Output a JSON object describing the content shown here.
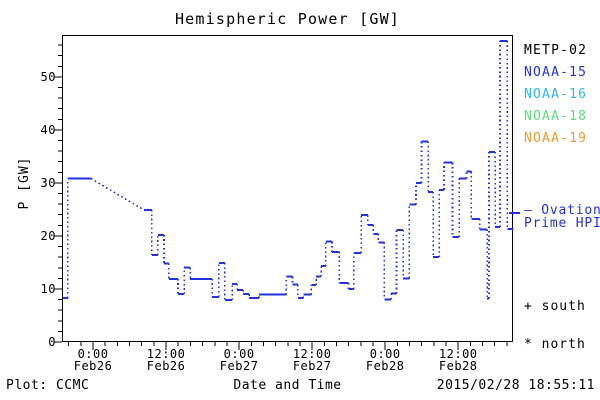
{
  "title": "Hemispheric Power [GW]",
  "colors": {
    "background": "#ffffff",
    "axis": "#000000",
    "line": "#2233dd"
  },
  "y_axis": {
    "label": "P [GW]",
    "ticks": [
      0,
      10,
      20,
      30,
      40,
      50
    ],
    "minor_step": 2,
    "max_value": 57.9
  },
  "x_axis": {
    "label": "Date and Time",
    "range_hours": [
      -5.1,
      69.0
    ],
    "minor_step_hours": 2,
    "major_ticks": [
      {
        "hours": 0,
        "time": "0:00",
        "date": "Feb26"
      },
      {
        "hours": 12,
        "time": "12:00",
        "date": "Feb26"
      },
      {
        "hours": 24,
        "time": "0:00",
        "date": "Feb27"
      },
      {
        "hours": 36,
        "time": "12:00",
        "date": "Feb27"
      },
      {
        "hours": 48,
        "time": "0:00",
        "date": "Feb28"
      },
      {
        "hours": 60,
        "time": "12:00",
        "date": "Feb28"
      }
    ]
  },
  "legend": [
    {
      "label": "METP-02",
      "color": "#000000"
    },
    {
      "label": "NOAA-15",
      "color": "#2233dd"
    },
    {
      "label": "NOAA-16",
      "color": "#2eb8ee"
    },
    {
      "label": "NOAA-18",
      "color": "#5ade7c"
    },
    {
      "label": "NOAA-19",
      "color": "#ef9a2e"
    }
  ],
  "annotations": {
    "hpi_label_line1": "– Ovation",
    "hpi_label_line2": "Prime HPI",
    "south": "+ south",
    "north": "* north"
  },
  "footer": {
    "credit": "Plot: CCMC",
    "timestamp": "2015/02/28 18:55:11"
  },
  "chart_data": {
    "type": "line",
    "title": "Hemispheric Power [GW]",
    "xlabel": "Date and Time",
    "ylabel": "P [GW]",
    "x_unit": "hours since 2015-02-26 00:00",
    "xlim": [
      -5.1,
      69.0
    ],
    "ylim": [
      0,
      57.9
    ],
    "grid": false,
    "legend_position": "right",
    "series": [
      {
        "name": "Ovation Prime HPI (NOAA-15)",
        "color": "#2233dd",
        "style": "solid dashes joined by dotted connectors",
        "segments_t1_t2_GW": [
          [
            -5.1,
            -4.3,
            8.5
          ],
          [
            -4.3,
            -0.5,
            31.0
          ],
          [
            8.2,
            9.5,
            25.1
          ],
          [
            9.5,
            10.5,
            16.6
          ],
          [
            10.5,
            11.5,
            20.4
          ],
          [
            11.5,
            12.3,
            15.0
          ],
          [
            12.3,
            13.8,
            12.1
          ],
          [
            13.8,
            14.8,
            9.2
          ],
          [
            14.8,
            15.8,
            14.2
          ],
          [
            15.8,
            19.4,
            12.1
          ],
          [
            19.4,
            20.5,
            8.7
          ],
          [
            20.5,
            21.5,
            15.1
          ],
          [
            21.5,
            22.7,
            8.1
          ],
          [
            22.7,
            23.5,
            11.1
          ],
          [
            23.5,
            24.5,
            10.0
          ],
          [
            24.5,
            25.5,
            9.2
          ],
          [
            25.5,
            27.1,
            8.5
          ],
          [
            27.1,
            31.6,
            9.1
          ],
          [
            31.6,
            32.6,
            12.5
          ],
          [
            32.6,
            33.5,
            11.0
          ],
          [
            33.5,
            34.4,
            8.5
          ],
          [
            34.4,
            35.7,
            9.1
          ],
          [
            35.7,
            36.5,
            10.9
          ],
          [
            36.5,
            37.3,
            12.5
          ],
          [
            37.3,
            38.1,
            14.5
          ],
          [
            38.1,
            39.1,
            19.1
          ],
          [
            39.1,
            40.3,
            17.2
          ],
          [
            40.3,
            41.8,
            11.3
          ],
          [
            41.8,
            42.7,
            10.2
          ],
          [
            42.7,
            43.9,
            17.0
          ],
          [
            43.9,
            45.0,
            24.1
          ],
          [
            45.0,
            45.9,
            22.3
          ],
          [
            45.9,
            46.7,
            20.6
          ],
          [
            46.7,
            47.7,
            19.0
          ],
          [
            47.7,
            48.8,
            8.2
          ],
          [
            48.8,
            49.7,
            9.3
          ],
          [
            49.7,
            50.8,
            21.3
          ],
          [
            50.8,
            51.8,
            12.2
          ],
          [
            51.8,
            52.9,
            26.1
          ],
          [
            52.9,
            53.8,
            30.2
          ],
          [
            53.8,
            54.9,
            38.0
          ],
          [
            54.9,
            55.7,
            28.5
          ],
          [
            55.7,
            56.7,
            16.2
          ],
          [
            56.7,
            57.5,
            28.9
          ],
          [
            57.5,
            58.9,
            34.0
          ],
          [
            58.9,
            60.0,
            20.0
          ],
          [
            60.0,
            61.2,
            31.0
          ],
          [
            61.2,
            62.0,
            32.3
          ],
          [
            62.0,
            63.4,
            23.4
          ],
          [
            63.4,
            64.6,
            21.4
          ],
          [
            64.6,
            64.9,
            8.4
          ],
          [
            64.9,
            65.9,
            36.0
          ],
          [
            65.9,
            66.7,
            21.9
          ],
          [
            66.7,
            67.9,
            57.0
          ],
          [
            67.9,
            68.9,
            21.5
          ]
        ],
        "current_value_marker_GW": 24.3
      }
    ]
  }
}
